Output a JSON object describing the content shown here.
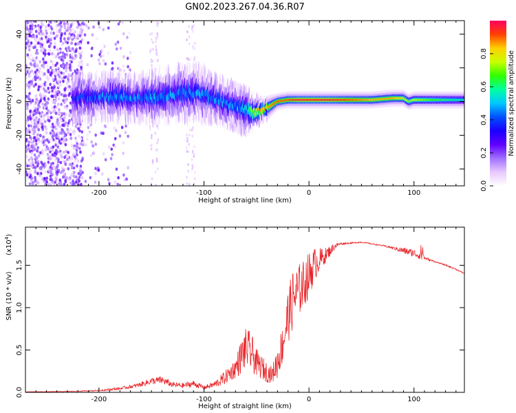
{
  "figure_title": "GN02.2023.267.04.36.R07",
  "colors": {
    "snr_line": "#e8262a",
    "colormap": [
      "#ffffff",
      "#e8c8ff",
      "#a070ff",
      "#6000ff",
      "#1a00ff",
      "#0050ff",
      "#00c8ff",
      "#00ffa0",
      "#30ff00",
      "#c8ff00",
      "#ffd000",
      "#ff4000",
      "#ff0060"
    ]
  },
  "chart_data": [
    {
      "type": "heatmap",
      "title": "GN02.2023.267.04.36.R07",
      "xlabel": "Height of straight line (km)",
      "ylabel": "Frequency (Hz)",
      "xlim": [
        -270,
        148
      ],
      "ylim": [
        -50,
        48
      ],
      "xticks": [
        -200,
        -100,
        0,
        100
      ],
      "yticks": [
        -40,
        -20,
        0,
        20,
        40
      ],
      "colorbar": {
        "label": "Normalized spectral amplitude",
        "range": [
          0,
          1
        ],
        "ticks": [
          "0.0",
          "0.2",
          "0.4",
          "0.6",
          "0.8"
        ],
        "tick_values": [
          0,
          0.2,
          0.4,
          0.6,
          0.8
        ]
      },
      "ridge": {
        "x": [
          -225,
          -200,
          -180,
          -160,
          -140,
          -120,
          -110,
          -100,
          -90,
          -80,
          -70,
          -60,
          -55,
          -50,
          -45,
          -40,
          -30,
          -20,
          -10,
          0,
          20,
          40,
          60,
          80,
          90,
          95,
          100,
          120,
          148
        ],
        "y": [
          2,
          3,
          3,
          2,
          3,
          5,
          5,
          4,
          2,
          -1,
          -3,
          -5,
          -6,
          -6,
          -5,
          -4,
          0,
          1,
          1,
          1,
          1,
          1,
          1,
          2,
          2,
          0,
          1,
          1,
          1
        ],
        "width": [
          6,
          6,
          6,
          6,
          7,
          7,
          7,
          7,
          6,
          6,
          6,
          6,
          5,
          4,
          3,
          3,
          2,
          2,
          2,
          2,
          2,
          2,
          2,
          2,
          2,
          2,
          2,
          2,
          2
        ],
        "peak": [
          0.35,
          0.4,
          0.45,
          0.45,
          0.45,
          0.45,
          0.45,
          0.45,
          0.45,
          0.45,
          0.45,
          0.5,
          0.7,
          0.8,
          0.85,
          0.85,
          0.9,
          0.9,
          0.95,
          0.95,
          0.95,
          0.9,
          0.85,
          0.85,
          0.8,
          0.7,
          0.75,
          0.65,
          0.55
        ]
      }
    },
    {
      "type": "line",
      "xlabel": "Height of straight line (km)",
      "ylabel": "SNR (10 * v/v)",
      "multiplier": "(x10",
      "multiplier_exp": "4",
      "multiplier_close": ")",
      "xlim": [
        -270,
        148
      ],
      "ylim": [
        0,
        1.95
      ],
      "xticks": [
        -200,
        -100,
        0,
        100
      ],
      "yticks": [
        0.0,
        0.5,
        1.0,
        1.5
      ],
      "ytick_labels": [
        "0.0",
        "0.5",
        "1.0",
        "1.5"
      ],
      "series": [
        {
          "x": [
            -270,
            -240,
            -220,
            -200,
            -180,
            -165,
            -150,
            -140,
            -130,
            -120,
            -110,
            -100,
            -90,
            -80,
            -70,
            -65,
            -60,
            -55,
            -50,
            -40,
            -35,
            -30,
            -25,
            -20,
            -15,
            -10,
            -5,
            0,
            5,
            10,
            15,
            20,
            25,
            30,
            40,
            50,
            60,
            70,
            80,
            90,
            100,
            105,
            108,
            110,
            120,
            130,
            140,
            148
          ],
          "y": [
            0.005,
            0.008,
            0.012,
            0.02,
            0.04,
            0.07,
            0.12,
            0.13,
            0.08,
            0.07,
            0.09,
            0.05,
            0.08,
            0.15,
            0.25,
            0.35,
            0.45,
            0.4,
            0.3,
            0.2,
            0.18,
            0.3,
            0.5,
            0.8,
            1.0,
            1.1,
            1.2,
            1.3,
            1.45,
            1.52,
            1.58,
            1.65,
            1.72,
            1.75,
            1.76,
            1.77,
            1.75,
            1.73,
            1.7,
            1.66,
            1.63,
            1.6,
            1.62,
            1.58,
            1.54,
            1.5,
            1.45,
            1.4
          ],
          "noise": [
            0.003,
            0.004,
            0.006,
            0.01,
            0.02,
            0.03,
            0.05,
            0.06,
            0.04,
            0.04,
            0.05,
            0.03,
            0.05,
            0.1,
            0.15,
            0.25,
            0.3,
            0.3,
            0.2,
            0.15,
            0.12,
            0.25,
            0.3,
            0.4,
            0.45,
            0.4,
            0.35,
            0.35,
            0.25,
            0.18,
            0.12,
            0.08,
            0.04,
            0.02,
            0.01,
            0.01,
            0.01,
            0.01,
            0.02,
            0.05,
            0.06,
            0.05,
            0.2,
            0.02,
            0.01,
            0.01,
            0.01,
            0.01
          ]
        }
      ]
    }
  ]
}
